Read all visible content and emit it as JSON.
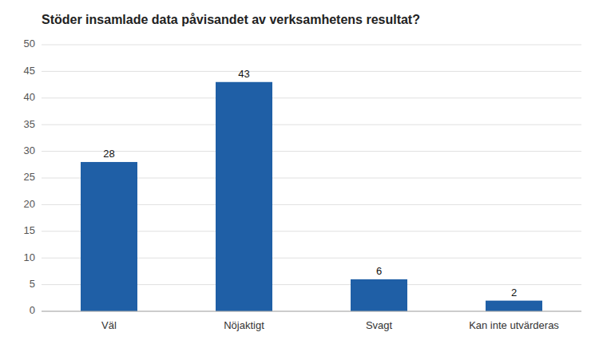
{
  "chart_data": {
    "type": "bar",
    "title": "Stöder insamlade data påvisandet av verksamhetens resultat?",
    "categories": [
      "Väl",
      "Nöjaktigt",
      "Svagt",
      "Kan inte utvärderas"
    ],
    "values": [
      28,
      43,
      6,
      2
    ],
    "color": "#1F5FA6",
    "ylim": [
      0,
      50
    ],
    "yticks": [
      0,
      5,
      10,
      15,
      20,
      25,
      30,
      35,
      40,
      45,
      50
    ],
    "grid": true,
    "data_labels": true
  }
}
